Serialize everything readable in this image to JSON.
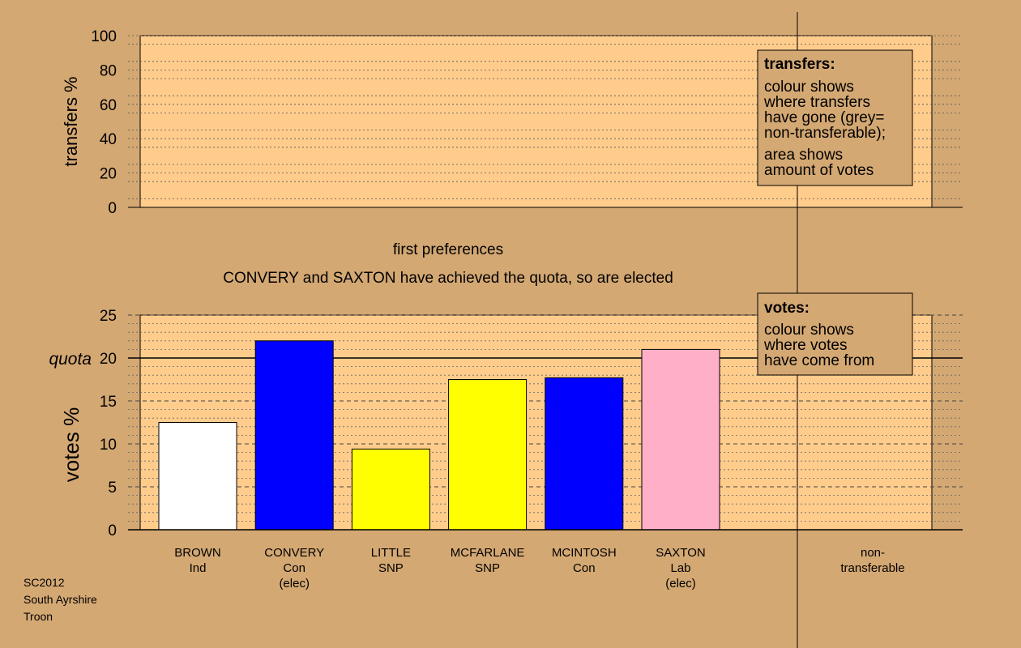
{
  "colors": {
    "background": "#d4a873",
    "plot_background": "#ffcc8c",
    "legend_background": "#d4a873",
    "ind_white": "#ffffff",
    "con_blue": "#0000ff",
    "snp_yellow": "#ffff00",
    "lab_pink": "#ffb0c8"
  },
  "footer": {
    "line1": "SC2012",
    "line2": "South Ayrshire",
    "line3": "Troon"
  },
  "chart_data": [
    {
      "type": "bar",
      "ylabel": "transfers %",
      "ylim": [
        0,
        100
      ],
      "yticks": [
        "0",
        "20",
        "40",
        "60",
        "80",
        "100"
      ],
      "values": [],
      "grid": true,
      "legend": {
        "title": "transfers:",
        "lines_a": [
          "colour shows",
          "where transfers",
          "have gone (grey=",
          "non-transferable);"
        ],
        "lines_b": [
          "area shows",
          "amount of votes"
        ]
      }
    },
    {
      "type": "bar",
      "title": "first preferences",
      "subtitle": "CONVERY and SAXTON have achieved the quota, so are elected",
      "ylabel": "votes %",
      "ylim": [
        0,
        25
      ],
      "yticks": [
        "0",
        "5",
        "10",
        "15",
        "20",
        "25"
      ],
      "quota": 20,
      "quota_label": "quota",
      "grid": true,
      "categories": [
        {
          "name": "BROWN",
          "party": "Ind",
          "status": ""
        },
        {
          "name": "CONVERY",
          "party": "Con",
          "status": "(elec)"
        },
        {
          "name": "LITTLE",
          "party": "SNP",
          "status": ""
        },
        {
          "name": "MCFARLANE",
          "party": "SNP",
          "status": ""
        },
        {
          "name": "MCINTOSH",
          "party": "Con",
          "status": ""
        },
        {
          "name": "SAXTON",
          "party": "Lab",
          "status": "(elec)"
        }
      ],
      "values": [
        12.5,
        22.0,
        9.4,
        17.5,
        17.7,
        21.0
      ],
      "bar_colors": [
        "#ffffff",
        "#0000ff",
        "#ffff00",
        "#ffff00",
        "#0000ff",
        "#ffb0c8"
      ],
      "extra_category": [
        "non-",
        "transferable"
      ],
      "legend": {
        "title": "votes:",
        "lines": [
          "colour shows",
          "where votes",
          "have come from"
        ]
      }
    }
  ]
}
